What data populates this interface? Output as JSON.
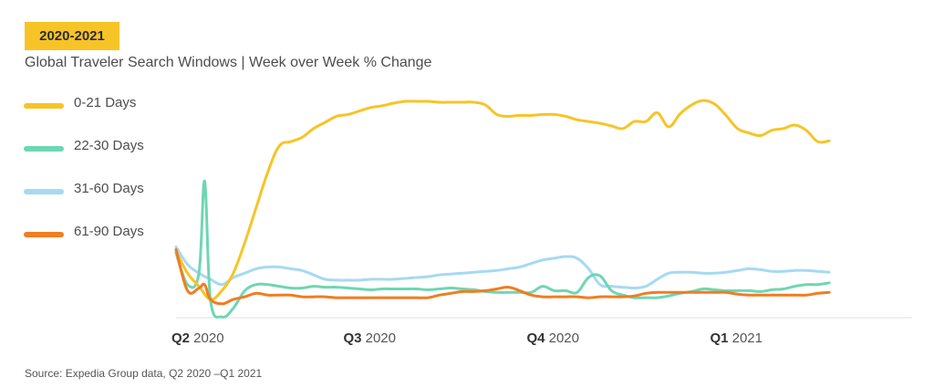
{
  "badge": "2020-2021",
  "chart_data": {
    "type": "line",
    "title": "Global Traveler Search Windows | Week over Week % Change",
    "source": "Source: Expedia Group data, Q2 2020 –Q1 2021",
    "x_tick_labels": [
      {
        "quarter": "Q2",
        "year": "2020"
      },
      {
        "quarter": "Q3",
        "year": "2020"
      },
      {
        "quarter": "Q4",
        "year": "2020"
      },
      {
        "quarter": "Q1",
        "year": "2021"
      }
    ],
    "x_tick_weeks": [
      0,
      15,
      31,
      47
    ],
    "x_range": [
      0,
      64
    ],
    "y_axis_visible": false,
    "grid": false,
    "legend_position": "left",
    "ylim": [
      -70,
      180
    ],
    "series": [
      {
        "name": "0-21 Days",
        "color": "#f7c427",
        "points": [
          [
            0,
            10
          ],
          [
            1,
            -15
          ],
          [
            2,
            -30
          ],
          [
            3,
            -45
          ],
          [
            4,
            -35
          ],
          [
            5,
            -15
          ],
          [
            6,
            20
          ],
          [
            7,
            60
          ],
          [
            8,
            100
          ],
          [
            9,
            130
          ],
          [
            10,
            135
          ],
          [
            11,
            140
          ],
          [
            12,
            150
          ],
          [
            13,
            157
          ],
          [
            14,
            164
          ],
          [
            15,
            166
          ],
          [
            16,
            170
          ],
          [
            17,
            174
          ],
          [
            18,
            176
          ],
          [
            19,
            179
          ],
          [
            20,
            181
          ],
          [
            21,
            181
          ],
          [
            22,
            181
          ],
          [
            23,
            180
          ],
          [
            24,
            180
          ],
          [
            25,
            180
          ],
          [
            26,
            180
          ],
          [
            27,
            177
          ],
          [
            28,
            166
          ],
          [
            29,
            164
          ],
          [
            30,
            165
          ],
          [
            31,
            165
          ],
          [
            32,
            166
          ],
          [
            33,
            166
          ],
          [
            34,
            164
          ],
          [
            35,
            160
          ],
          [
            36,
            158
          ],
          [
            37,
            156
          ],
          [
            38,
            153
          ],
          [
            39,
            150
          ],
          [
            40,
            158
          ],
          [
            41,
            158
          ],
          [
            42,
            168
          ],
          [
            43,
            152
          ],
          [
            44,
            167
          ],
          [
            45,
            177
          ],
          [
            46,
            182
          ],
          [
            47,
            178
          ],
          [
            48,
            165
          ],
          [
            49,
            150
          ],
          [
            50,
            145
          ],
          [
            51,
            142
          ],
          [
            52,
            148
          ],
          [
            53,
            150
          ],
          [
            54,
            154
          ],
          [
            55,
            148
          ],
          [
            56,
            135
          ],
          [
            57,
            136
          ]
        ]
      },
      {
        "name": "22-30 Days",
        "color": "#6fd6b2",
        "points": [
          [
            0,
            8
          ],
          [
            1,
            -28
          ],
          [
            2,
            -15
          ],
          [
            2.5,
            90
          ],
          [
            3,
            -45
          ],
          [
            4,
            -65
          ],
          [
            5,
            -55
          ],
          [
            6,
            -35
          ],
          [
            7,
            -28
          ],
          [
            8,
            -28
          ],
          [
            9,
            -30
          ],
          [
            10,
            -32
          ],
          [
            11,
            -32
          ],
          [
            12,
            -30
          ],
          [
            13,
            -31
          ],
          [
            14,
            -31
          ],
          [
            15,
            -32
          ],
          [
            16,
            -33
          ],
          [
            17,
            -34
          ],
          [
            18,
            -33
          ],
          [
            19,
            -33
          ],
          [
            20,
            -33
          ],
          [
            21,
            -33
          ],
          [
            22,
            -34
          ],
          [
            23,
            -33
          ],
          [
            24,
            -32
          ],
          [
            25,
            -33
          ],
          [
            26,
            -34
          ],
          [
            27,
            -36
          ],
          [
            28,
            -37
          ],
          [
            29,
            -37
          ],
          [
            30,
            -37
          ],
          [
            31,
            -37
          ],
          [
            32,
            -30
          ],
          [
            33,
            -35
          ],
          [
            34,
            -35
          ],
          [
            35,
            -37
          ],
          [
            36,
            -20
          ],
          [
            37,
            -18
          ],
          [
            38,
            -35
          ],
          [
            39,
            -40
          ],
          [
            40,
            -43
          ],
          [
            41,
            -43
          ],
          [
            42,
            -43
          ],
          [
            43,
            -41
          ],
          [
            44,
            -38
          ],
          [
            45,
            -36
          ],
          [
            46,
            -33
          ],
          [
            47,
            -34
          ],
          [
            48,
            -35
          ],
          [
            49,
            -35
          ],
          [
            50,
            -35
          ],
          [
            51,
            -36
          ],
          [
            52,
            -34
          ],
          [
            53,
            -33
          ],
          [
            54,
            -30
          ],
          [
            55,
            -28
          ],
          [
            56,
            -28
          ],
          [
            57,
            -26
          ]
        ]
      },
      {
        "name": "31-60 Days",
        "color": "#a6d9f4",
        "points": [
          [
            0,
            15
          ],
          [
            1,
            -5
          ],
          [
            2,
            -15
          ],
          [
            3,
            -22
          ],
          [
            4,
            -28
          ],
          [
            5,
            -20
          ],
          [
            6,
            -15
          ],
          [
            7,
            -10
          ],
          [
            8,
            -8
          ],
          [
            9,
            -8
          ],
          [
            10,
            -10
          ],
          [
            11,
            -12
          ],
          [
            12,
            -17
          ],
          [
            13,
            -22
          ],
          [
            14,
            -23
          ],
          [
            15,
            -23
          ],
          [
            16,
            -23
          ],
          [
            17,
            -22
          ],
          [
            18,
            -22
          ],
          [
            19,
            -22
          ],
          [
            20,
            -21
          ],
          [
            21,
            -20
          ],
          [
            22,
            -19
          ],
          [
            23,
            -17
          ],
          [
            24,
            -16
          ],
          [
            25,
            -15
          ],
          [
            26,
            -14
          ],
          [
            27,
            -13
          ],
          [
            28,
            -12
          ],
          [
            29,
            -10
          ],
          [
            30,
            -8
          ],
          [
            31,
            -4
          ],
          [
            32,
            0
          ],
          [
            33,
            2
          ],
          [
            34,
            4
          ],
          [
            35,
            2
          ],
          [
            36,
            -10
          ],
          [
            37,
            -28
          ],
          [
            38,
            -30
          ],
          [
            39,
            -31
          ],
          [
            40,
            -32
          ],
          [
            41,
            -30
          ],
          [
            42,
            -22
          ],
          [
            43,
            -15
          ],
          [
            44,
            -14
          ],
          [
            45,
            -14
          ],
          [
            46,
            -15
          ],
          [
            47,
            -15
          ],
          [
            48,
            -14
          ],
          [
            49,
            -12
          ],
          [
            50,
            -10
          ],
          [
            51,
            -11
          ],
          [
            52,
            -13
          ],
          [
            53,
            -13
          ],
          [
            54,
            -12
          ],
          [
            55,
            -12
          ],
          [
            56,
            -13
          ],
          [
            57,
            -14
          ]
        ]
      },
      {
        "name": "61-90 Days",
        "color": "#ef7d22",
        "points": [
          [
            0,
            12
          ],
          [
            1,
            -35
          ],
          [
            2,
            -32
          ],
          [
            2.5,
            -28
          ],
          [
            3,
            -45
          ],
          [
            4,
            -50
          ],
          [
            5,
            -45
          ],
          [
            6,
            -42
          ],
          [
            7,
            -38
          ],
          [
            8,
            -40
          ],
          [
            9,
            -40
          ],
          [
            10,
            -40
          ],
          [
            11,
            -42
          ],
          [
            12,
            -42
          ],
          [
            13,
            -42
          ],
          [
            14,
            -43
          ],
          [
            15,
            -43
          ],
          [
            16,
            -43
          ],
          [
            17,
            -43
          ],
          [
            18,
            -43
          ],
          [
            19,
            -43
          ],
          [
            20,
            -43
          ],
          [
            21,
            -43
          ],
          [
            22,
            -43
          ],
          [
            23,
            -40
          ],
          [
            24,
            -38
          ],
          [
            25,
            -36
          ],
          [
            26,
            -36
          ],
          [
            27,
            -35
          ],
          [
            28,
            -33
          ],
          [
            29,
            -31
          ],
          [
            30,
            -35
          ],
          [
            31,
            -40
          ],
          [
            32,
            -42
          ],
          [
            33,
            -42
          ],
          [
            34,
            -42
          ],
          [
            35,
            -42
          ],
          [
            36,
            -43
          ],
          [
            37,
            -42
          ],
          [
            38,
            -42
          ],
          [
            39,
            -42
          ],
          [
            40,
            -41
          ],
          [
            41,
            -38
          ],
          [
            42,
            -37
          ],
          [
            43,
            -37
          ],
          [
            44,
            -37
          ],
          [
            45,
            -37
          ],
          [
            46,
            -37
          ],
          [
            47,
            -37
          ],
          [
            48,
            -37
          ],
          [
            49,
            -39
          ],
          [
            50,
            -40
          ],
          [
            51,
            -40
          ],
          [
            52,
            -40
          ],
          [
            53,
            -40
          ],
          [
            54,
            -40
          ],
          [
            55,
            -40
          ],
          [
            56,
            -38
          ],
          [
            57,
            -37
          ]
        ]
      }
    ]
  }
}
